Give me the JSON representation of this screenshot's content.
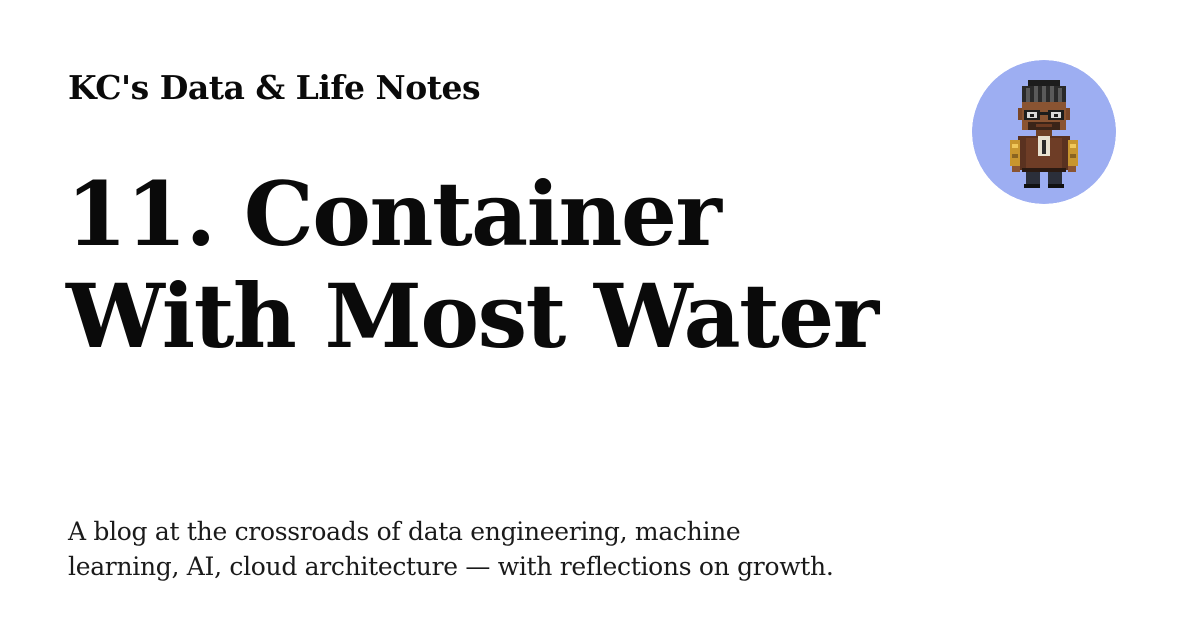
{
  "site": {
    "name": "KC's Data & Life Notes"
  },
  "post": {
    "title_lines": [
      "11. Container",
      "With Most Water"
    ]
  },
  "tagline": {
    "lines": [
      "A blog at the crossroads of data engineering, machine",
      "learning, AI, cloud architecture — with reflections on growth."
    ]
  },
  "avatar": {
    "icon": "pixel-character-avatar-icon",
    "background_color": "#9daef2"
  }
}
